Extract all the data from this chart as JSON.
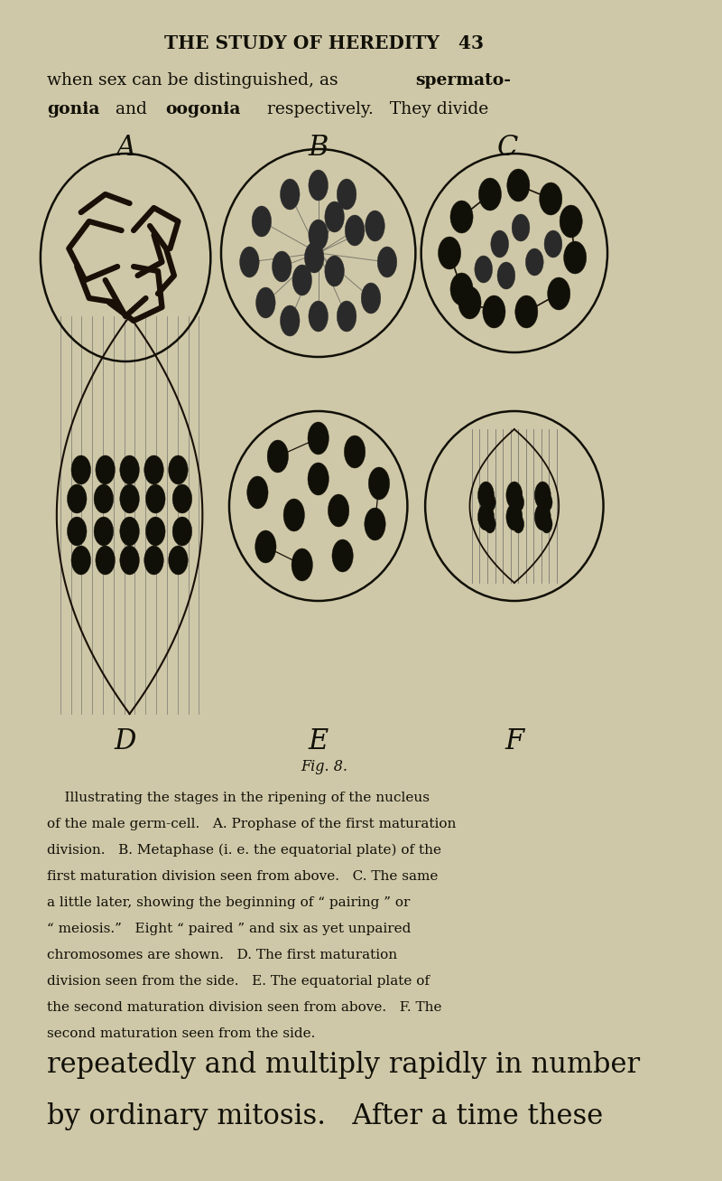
{
  "bg": "#cfc8a8",
  "tc": "#111008",
  "ink": "#111008",
  "header": "THE STUDY OF HEREDITY   43",
  "footer_line1": "repeatedly and multiply rapidly in number",
  "footer_line2": "by ordinary mitosis.   After a time these",
  "body_lines": [
    "    Illustrating the stages in the ripening of the nucleus",
    "of the male germ-cell.   A. Prophase of the first maturation",
    "division.   B. Metaphase (i. e. the equatorial plate) of the",
    "first maturation division seen from above.   C. The same",
    "a little later, showing the beginning of “ pairing ” or",
    "“ meiosis.”   Eight “ paired ” and six as yet unpaired",
    "chromosomes are shown.   D. The first maturation",
    "division seen from the side.   E. The equatorial plate of",
    "the second maturation division seen from above.   F. The",
    "second maturation seen from the side."
  ]
}
